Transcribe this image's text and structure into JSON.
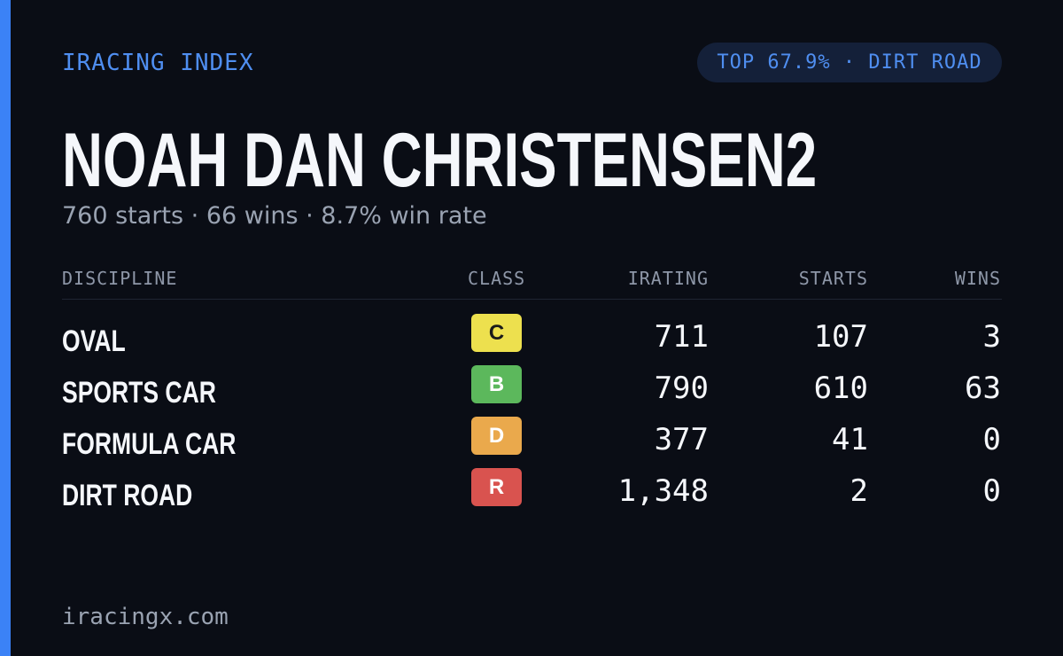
{
  "header": {
    "brand": "IRACING INDEX",
    "badge": "TOP 67.9% · DIRT ROAD"
  },
  "name": "NOAH DAN CHRISTENSEN2",
  "summary": "760 starts · 66 wins · 8.7% win rate",
  "table": {
    "columns": [
      "DISCIPLINE",
      "CLASS",
      "IRATING",
      "STARTS",
      "WINS"
    ],
    "rows": [
      [
        "OVAL",
        "C",
        711,
        107,
        3
      ],
      [
        "SPORTS CAR",
        "B",
        790,
        610,
        63
      ],
      [
        "FORMULA CAR",
        "D",
        377,
        41,
        0
      ],
      [
        "DIRT ROAD",
        "R",
        "1,348",
        2,
        0
      ]
    ],
    "class_colors": {
      "C": "#ede04e",
      "B": "#5cb85c",
      "D": "#eaa94c",
      "R": "#d9534f"
    }
  },
  "footer": "iracingx.com"
}
